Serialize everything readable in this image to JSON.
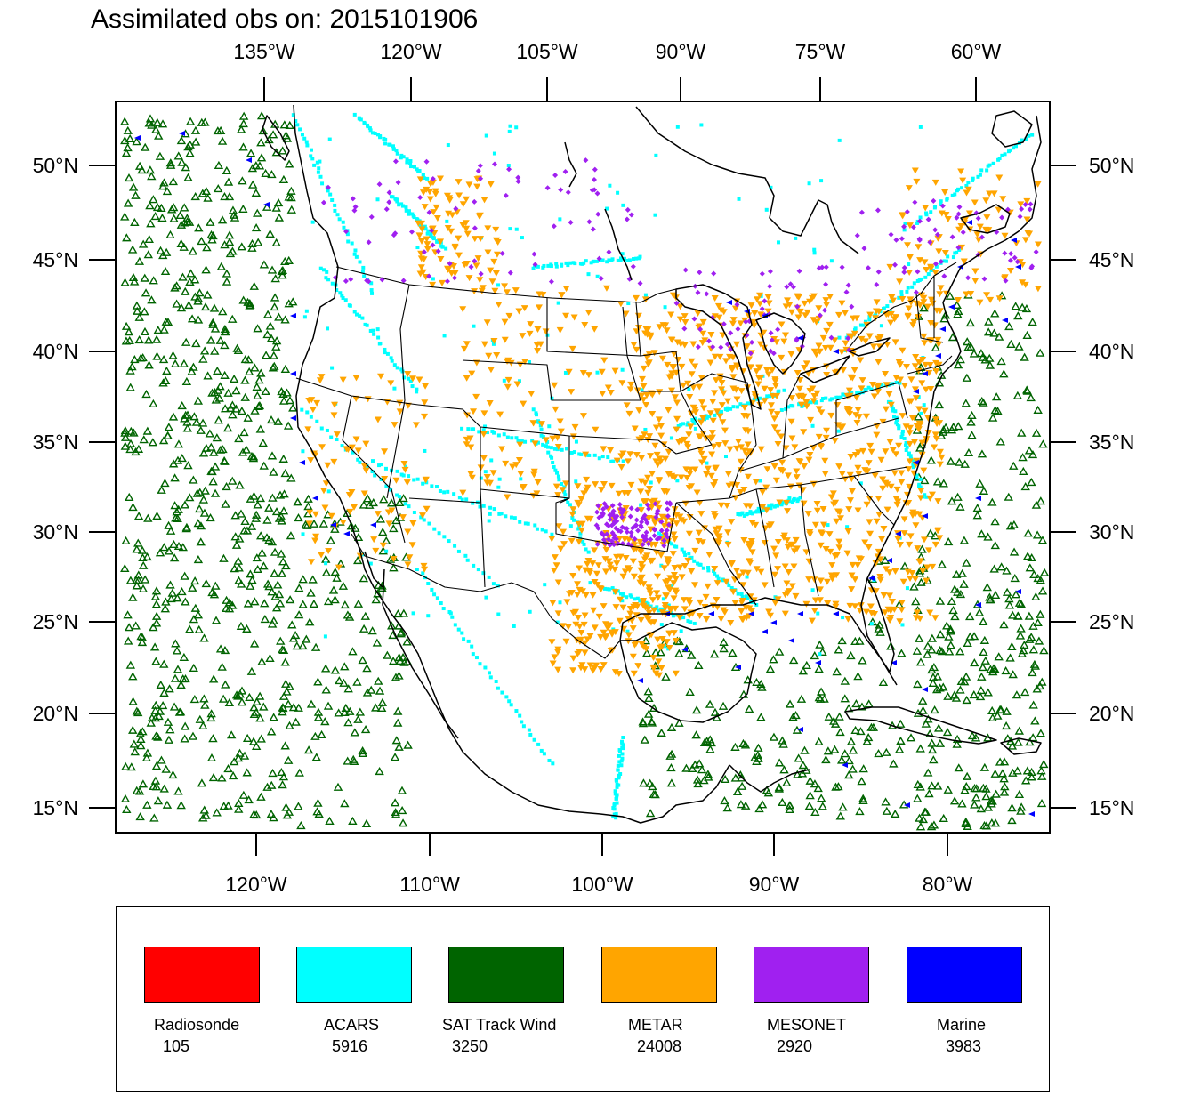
{
  "title": "Assimilated obs on: 2015101906",
  "axes": {
    "top_lon_labels": [
      "135°W",
      "120°W",
      "105°W",
      "90°W",
      "75°W",
      "60°W"
    ],
    "bottom_lon_labels": [
      "120°W",
      "110°W",
      "100°W",
      "90°W",
      "80°W"
    ],
    "left_lat_labels": [
      "50°N",
      "45°N",
      "40°N",
      "35°N",
      "30°N",
      "25°N",
      "20°N",
      "15°N"
    ],
    "right_lat_labels": [
      "50°N",
      "45°N",
      "40°N",
      "35°N",
      "30°N",
      "25°N",
      "20°N",
      "15°N"
    ]
  },
  "legend": [
    {
      "label": "Radiosonde",
      "count": "105",
      "color": "#ff0000"
    },
    {
      "label": "ACARS",
      "count": "5916",
      "color": "#00ffff"
    },
    {
      "label": "SAT Track Wind",
      "count": "3250",
      "color": "#006400"
    },
    {
      "label": "METAR",
      "count": "24008",
      "color": "#ffa500"
    },
    {
      "label": "MESONET",
      "count": "2920",
      "color": "#a020f0"
    },
    {
      "label": "Marine",
      "count": "3983",
      "color": "#0000ff"
    }
  ]
}
